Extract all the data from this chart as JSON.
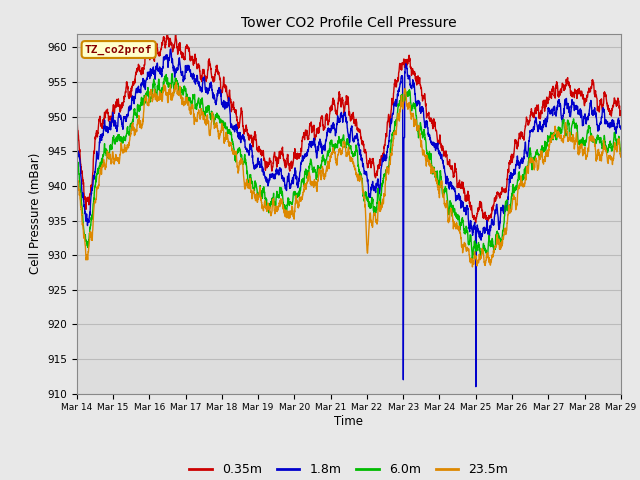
{
  "title": "Tower CO2 Profile Cell Pressure",
  "xlabel": "Time",
  "ylabel": "Cell Pressure (mBar)",
  "ylim": [
    910,
    962
  ],
  "yticks": [
    910,
    915,
    920,
    925,
    930,
    935,
    940,
    945,
    950,
    955,
    960
  ],
  "colors": {
    "0.35m": "#cc0000",
    "1.8m": "#0000cc",
    "6.0m": "#00bb00",
    "23.5m": "#dd8800"
  },
  "line_width": 1.0,
  "legend_label": "TZ_co2prof",
  "legend_box_facecolor": "#ffffcc",
  "legend_box_edgecolor": "#cc8800",
  "plot_bg": "#dddddd",
  "fig_bg": "#e8e8e8",
  "grid_color": "#cccccc",
  "num_days": 15,
  "series_names": [
    "0.35m",
    "1.8m",
    "6.0m",
    "23.5m"
  ],
  "tick_labels": [
    "Mar 14",
    "Mar 15",
    "Mar 16",
    "Mar 17",
    "Mar 18",
    "Mar 19",
    "Mar 20",
    "Mar 21",
    "Mar 22",
    "Mar 23",
    "Mar 24",
    "Mar 25",
    "Mar 26",
    "Mar 27",
    "Mar 28",
    "Mar 29"
  ]
}
